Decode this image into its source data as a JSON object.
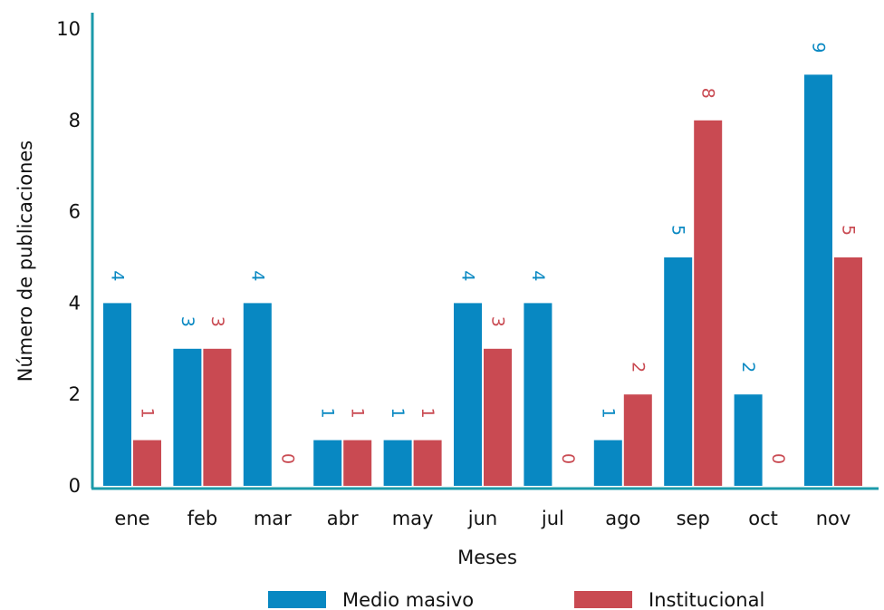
{
  "chart_data": {
    "type": "bar",
    "categories": [
      "ene",
      "feb",
      "mar",
      "abr",
      "may",
      "jun",
      "jul",
      "ago",
      "sep",
      "oct",
      "nov"
    ],
    "series": [
      {
        "name": "Medio masivo",
        "color": "#0888C2",
        "values": [
          4,
          3,
          4,
          1,
          1,
          4,
          4,
          1,
          5,
          2,
          9
        ]
      },
      {
        "name": "Institucional",
        "color": "#C94A52",
        "values": [
          1,
          3,
          0,
          1,
          1,
          3,
          0,
          2,
          8,
          0,
          5
        ]
      }
    ],
    "xlabel": "Meses",
    "ylabel": "Número de publicaciones",
    "ylim": [
      0,
      10
    ],
    "yticks": [
      0,
      2,
      4,
      6,
      8,
      10
    ],
    "axis_color": "#1B9AAA",
    "grid": false,
    "legend_position": "bottom",
    "data_labels": true
  }
}
